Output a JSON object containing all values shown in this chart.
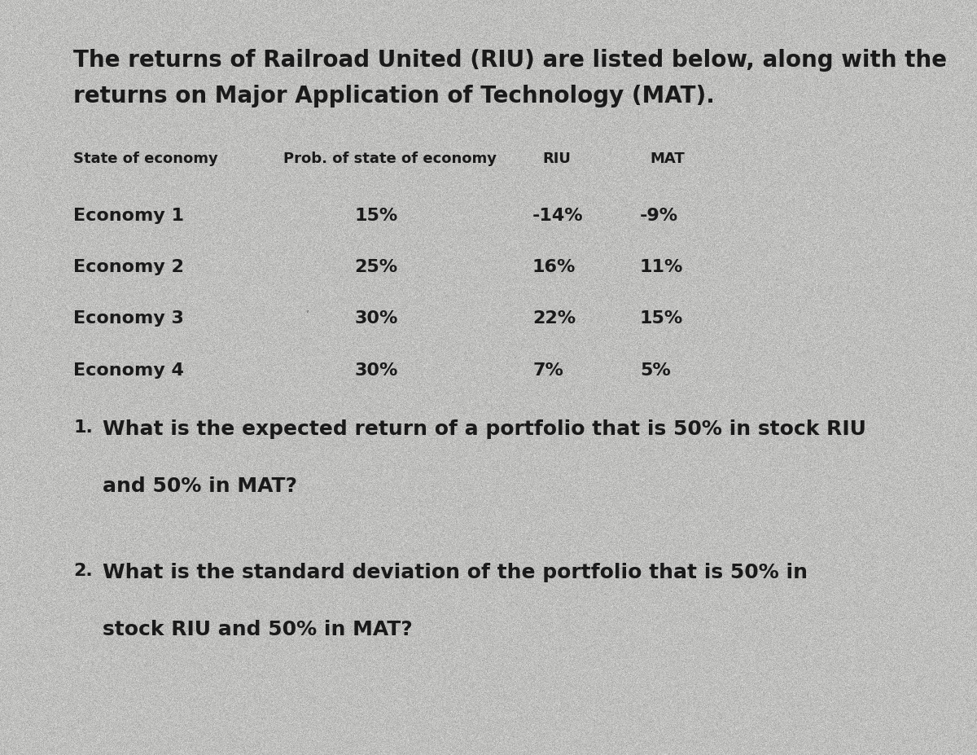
{
  "background_color": "#c8c8c8",
  "paper_color": "#e8e8e6",
  "title_line1": "The returns of Railroad United (RIU) are listed below, along with the",
  "title_line2": "returns on Major Application of Technology (MAT).",
  "header_col1": "State of economy",
  "header_col2": "Prob. of state of economy",
  "header_col3": "RIU",
  "header_col4": "MAT",
  "economies": [
    "Economy 1",
    "Economy 2",
    "Economy 3",
    "Economy 4"
  ],
  "probs": [
    "15%",
    "25%",
    "30%",
    "30%"
  ],
  "riu": [
    "-14%",
    "16%",
    "22%",
    "7%"
  ],
  "mat": [
    "-9%",
    "11%",
    "15%",
    "5%"
  ],
  "q1_num": "1.",
  "q1_text": "What is the expected return of a portfolio that is 50% in stock RIU",
  "q1_cont": "and 50% in MAT?",
  "q2_num": "2.",
  "q2_text": "What is the standard deviation of the portfolio that is 50% in",
  "q2_cont": "stock RIU and 50% in MAT?",
  "title_fontsize": 20,
  "header_fontsize": 13,
  "row_fontsize": 16,
  "question_fontsize": 18
}
